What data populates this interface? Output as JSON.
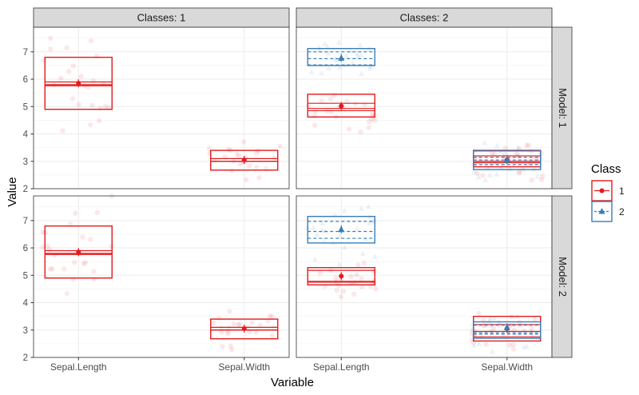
{
  "chart_data": {
    "type": "boxplot",
    "xlabel": "Variable",
    "ylabel": "Value",
    "ylim": [
      2,
      7.9
    ],
    "yticks": [
      2,
      3,
      4,
      5,
      6,
      7
    ],
    "categories": [
      "Sepal.Length",
      "Sepal.Width"
    ],
    "col_facets": [
      "Classes: 1",
      "Classes: 2"
    ],
    "row_facets": [
      "Model: 1",
      "Model: 2"
    ],
    "legend": {
      "title": "Class",
      "position": "right",
      "entries": [
        {
          "label": "1",
          "color": "#E41A1C",
          "marker": "circle",
          "line": "solid"
        },
        {
          "label": "2",
          "color": "#377EB8",
          "marker": "triangle",
          "line": "dashed"
        }
      ]
    },
    "panels": [
      {
        "row": 0,
        "col": 0,
        "boxes": [
          {
            "category": "Sepal.Length",
            "class": "1",
            "q1": 4.9,
            "median": 5.8,
            "q3": 6.8,
            "mean": 5.85,
            "mean_upper": 5.9,
            "mean_lower": 5.76
          },
          {
            "category": "Sepal.Width",
            "class": "1",
            "q1": 2.68,
            "median": 3.0,
            "q3": 3.4,
            "mean": 3.05,
            "mean_upper": 3.1,
            "mean_lower": 3.0
          }
        ]
      },
      {
        "row": 0,
        "col": 1,
        "boxes": [
          {
            "category": "Sepal.Length",
            "class": "1",
            "q1": 4.62,
            "median": 4.85,
            "q3": 5.45,
            "mean": 5.02,
            "mean_upper": 5.12,
            "mean_lower": 4.93
          },
          {
            "category": "Sepal.Length",
            "class": "2",
            "q1": 6.5,
            "median": 6.75,
            "q3": 7.12,
            "mean": 6.78,
            "mean_upper": 7.0,
            "mean_lower": 6.52
          },
          {
            "category": "Sepal.Width",
            "class": "1",
            "q1": 2.8,
            "median": 3.0,
            "q3": 3.4,
            "mean": 3.05,
            "mean_upper": 3.2,
            "mean_lower": 2.95
          },
          {
            "category": "Sepal.Width",
            "class": "2",
            "q1": 2.7,
            "median": 3.05,
            "q3": 3.38,
            "mean": 3.05,
            "mean_upper": 3.15,
            "mean_lower": 2.88
          }
        ]
      },
      {
        "row": 1,
        "col": 0,
        "boxes": [
          {
            "category": "Sepal.Length",
            "class": "1",
            "q1": 4.9,
            "median": 5.8,
            "q3": 6.8,
            "mean": 5.85,
            "mean_upper": 5.9,
            "mean_lower": 5.76
          },
          {
            "category": "Sepal.Width",
            "class": "1",
            "q1": 2.68,
            "median": 3.0,
            "q3": 3.4,
            "mean": 3.05,
            "mean_upper": 3.1,
            "mean_lower": 3.0
          }
        ]
      },
      {
        "row": 1,
        "col": 1,
        "boxes": [
          {
            "category": "Sepal.Length",
            "class": "1",
            "q1": 4.65,
            "median": 4.75,
            "q3": 5.28,
            "mean": 4.97,
            "mean_upper": 5.18,
            "mean_lower": 4.78
          },
          {
            "category": "Sepal.Length",
            "class": "2",
            "q1": 6.18,
            "median": 6.6,
            "q3": 7.15,
            "mean": 6.68,
            "mean_upper": 6.97,
            "mean_lower": 6.35
          },
          {
            "category": "Sepal.Width",
            "class": "1",
            "q1": 2.6,
            "median": 2.95,
            "q3": 3.5,
            "mean": 3.05,
            "mean_upper": 3.2,
            "mean_lower": 2.75
          },
          {
            "category": "Sepal.Width",
            "class": "2",
            "q1": 2.7,
            "median": 2.9,
            "q3": 3.3,
            "mean": 3.1,
            "mean_upper": 3.18,
            "mean_lower": 2.85
          }
        ]
      }
    ]
  }
}
